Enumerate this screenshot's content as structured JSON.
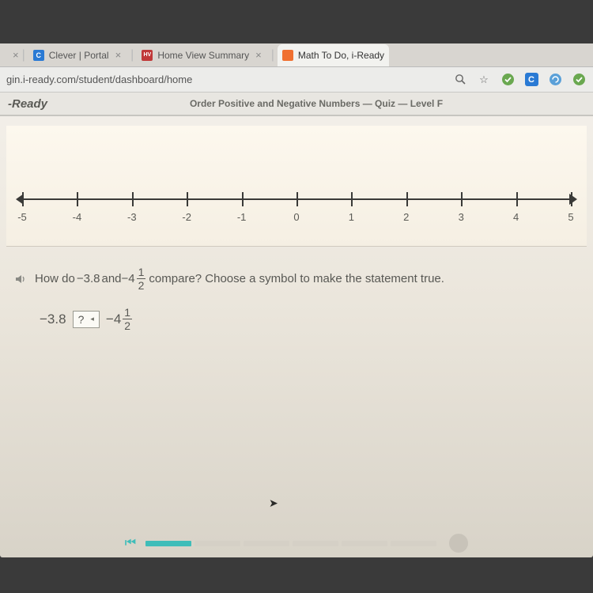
{
  "tabs": [
    {
      "label": "Clever | Portal",
      "favicon_bg": "#2a7ad4",
      "favicon_text": "C",
      "active": false
    },
    {
      "label": "Home View Summary",
      "favicon_bg": "#c03838",
      "favicon_text": "HV",
      "active": false
    },
    {
      "label": "Math To Do, i-Ready",
      "favicon_bg": "#f07030",
      "favicon_text": "",
      "active": true
    }
  ],
  "address": "gin.i-ready.com/student/dashboard/home",
  "toolbar_icons": [
    "zoom",
    "star",
    "check",
    "clever",
    "sync",
    "check2"
  ],
  "app": {
    "brand": "-Ready",
    "quiz_title": "Order Positive and Negative Numbers — Quiz — Level F"
  },
  "numberline": {
    "min": -5,
    "max": 5,
    "ticks": [
      -5,
      -4,
      -3,
      -2,
      -1,
      0,
      1,
      2,
      3,
      4,
      5
    ],
    "axis_color": "#3a3a38",
    "label_color": "#5a5a55",
    "label_fontsize": 13
  },
  "question": {
    "prefix": "How do ",
    "val_a": "−3.8",
    "mid": " and ",
    "val_b_whole": "−4",
    "val_b_num": "1",
    "val_b_den": "2",
    "suffix": " compare? Choose a symbol to make the statement true."
  },
  "expression": {
    "left": "−3.8",
    "dropdown_label": "?",
    "right_whole": "−4",
    "right_num": "1",
    "right_den": "2"
  },
  "progress": {
    "done_segments": 1,
    "total_segments": 6
  },
  "colors": {
    "screen_bg_top": "#f5f2ed",
    "panel_bg": "#fdf8ee",
    "accent": "#3fbdb9",
    "text": "#585854"
  }
}
